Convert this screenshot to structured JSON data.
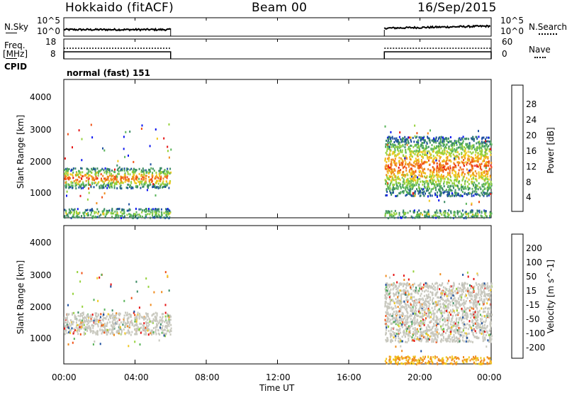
{
  "header": {
    "station": "Hokkaido (fitACF)",
    "beam": "Beam 00",
    "date": "16/Sep/2015"
  },
  "labels": {
    "nsky": "N.Sky",
    "nsearch": "N.Search",
    "freq_line1": "Freq.",
    "freq_line2": "[MHz]",
    "nave": "Nave",
    "cpid": "CPID",
    "cpid_value": "normal (fast) 151",
    "nsky_ticks": [
      "10^5",
      "10^0"
    ],
    "nsearch_ticks": [
      "10^5",
      "10^0"
    ],
    "freq_ticks": [
      "18",
      "8"
    ],
    "nave_ticks": [
      "60",
      "0"
    ],
    "xlabel": "Time UT"
  },
  "colors": {
    "power": [
      "#0a14f0",
      "#1e50a0",
      "#3c8c64",
      "#5ab45a",
      "#96d23c",
      "#f0c81e",
      "#f08c1e",
      "#f05014",
      "#e61414"
    ],
    "velocity": [
      "#e61414",
      "#f05014",
      "#f08c1e",
      "#f0c81e",
      "#c8c8be",
      "#96d23c",
      "#5ab45a",
      "#3c8c64",
      "#1e50a0"
    ]
  },
  "chart_data": [
    {
      "type": "heatmap",
      "name": "power",
      "ylabel": "Slant Range [km]",
      "xlabel": "",
      "colorbar_label": "Power [dB]",
      "colorbar_ticks": [
        "28",
        "24",
        "20",
        "16",
        "12",
        "8",
        "4"
      ],
      "colorbar_range": [
        0,
        32
      ],
      "x_ticks": [
        "00:00",
        "04:00",
        "08:00",
        "12:00",
        "16:00",
        "20:00",
        "00:00"
      ],
      "xlim_hours": [
        0,
        24
      ],
      "y_ticks": [
        "4000",
        "3000",
        "2000",
        "1000"
      ],
      "ylim": [
        180,
        4600
      ],
      "data_coverage_hours": [
        [
          0,
          6
        ],
        [
          18,
          24
        ]
      ],
      "echo_regions": [
        {
          "t": [
            0,
            6
          ],
          "range_km": [
            1150,
            1800
          ],
          "peak_db": 24
        },
        {
          "t": [
            0,
            6
          ],
          "range_km": [
            200,
            500
          ],
          "peak_db": 12
        },
        {
          "t": [
            18,
            24
          ],
          "range_km": [
            900,
            2800
          ],
          "peak_db": 24
        },
        {
          "t": [
            18,
            24
          ],
          "range_km": [
            200,
            450
          ],
          "peak_db": 12
        }
      ]
    },
    {
      "type": "heatmap",
      "name": "velocity",
      "ylabel": "Slant Range [km]",
      "xlabel": "Time UT",
      "colorbar_label": "Velocity [m s^-1]",
      "colorbar_ticks": [
        "200",
        "100",
        "50",
        "15",
        "-15",
        "-50",
        "-100",
        "-200"
      ],
      "x_ticks": [
        "00:00",
        "04:00",
        "08:00",
        "12:00",
        "16:00",
        "20:00",
        "00:00"
      ],
      "xlim_hours": [
        0,
        24
      ],
      "y_ticks": [
        "4000",
        "3000",
        "2000",
        "1000"
      ],
      "ylim": [
        180,
        4600
      ],
      "data_coverage_hours": [
        [
          0,
          6
        ],
        [
          18,
          24
        ]
      ],
      "echo_regions": [
        {
          "t": [
            0,
            6
          ],
          "range_km": [
            1150,
            1850
          ],
          "velocity_ms": 0
        },
        {
          "t": [
            18,
            24
          ],
          "range_km": [
            900,
            2800
          ],
          "velocity_ms": 0
        },
        {
          "t": [
            18,
            24
          ],
          "range_km": [
            200,
            450
          ],
          "velocity_ms": -50
        }
      ]
    }
  ]
}
